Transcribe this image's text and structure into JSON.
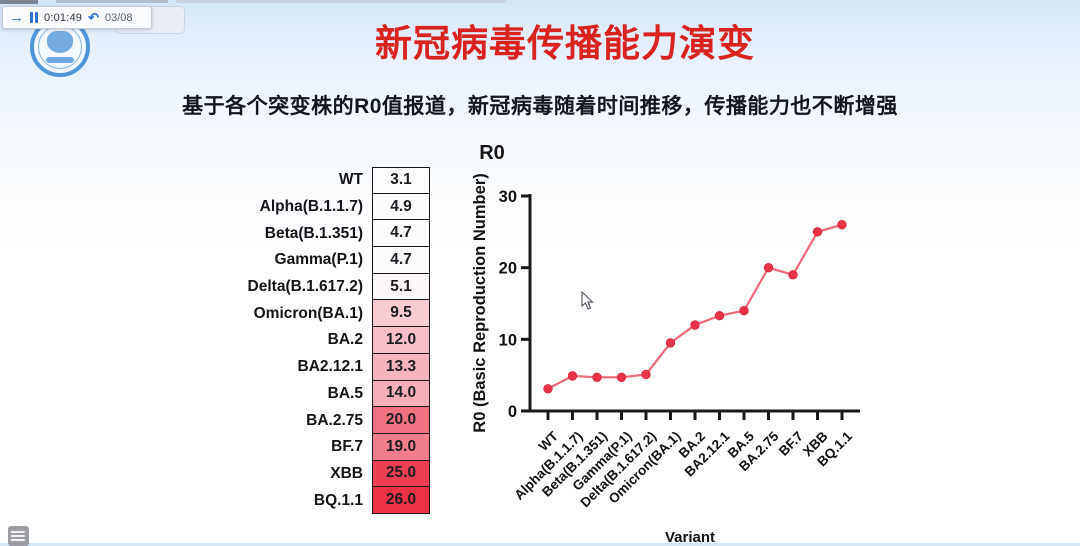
{
  "player": {
    "current_time": "0:01:49",
    "duration": "03/08",
    "play_glyph": "→",
    "undo_glyph": "↶"
  },
  "slide": {
    "title": "新冠病毒传播能力演变",
    "title_color": "#d8231f",
    "subtitle": "基于各个突变株的R0值报道，新冠病毒随着时间推移，传播能力也不断增强",
    "subtitle_color": "#14161f"
  },
  "table": {
    "header": "R0",
    "rows": [
      {
        "label": "WT",
        "value": "3.1",
        "color": "#fdfdfd"
      },
      {
        "label": "Alpha(B.1.1.7)",
        "value": "4.9",
        "color": "#fdfbfb"
      },
      {
        "label": "Beta(B.1.351)",
        "value": "4.7",
        "color": "#fdfbfb"
      },
      {
        "label": "Gamma(P.1)",
        "value": "4.7",
        "color": "#fdfbfb"
      },
      {
        "label": "Delta(B.1.617.2)",
        "value": "5.1",
        "color": "#fdf8f8"
      },
      {
        "label": "Omicron(BA.1)",
        "value": "9.5",
        "color": "#f8ccd3"
      },
      {
        "label": "BA.2",
        "value": "12.0",
        "color": "#f8bfc8"
      },
      {
        "label": "BA2.12.1",
        "value": "13.3",
        "color": "#f6b4be"
      },
      {
        "label": "BA.5",
        "value": "14.0",
        "color": "#f6aeb8"
      },
      {
        "label": "BA.2.75",
        "value": "20.0",
        "color": "#f17180"
      },
      {
        "label": "BF.7",
        "value": "19.0",
        "color": "#f27d8b"
      },
      {
        "label": "XBB",
        "value": "25.0",
        "color": "#ee4053"
      },
      {
        "label": "BQ.1.1",
        "value": "26.0",
        "color": "#ed3246"
      }
    ]
  },
  "chart_data": {
    "type": "line",
    "title": "",
    "categories": [
      "WT",
      "Alpha(B.1.1.7)",
      "Beta(B.1.351)",
      "Gamma(P.1)",
      "Delta(B.1.617.2)",
      "Omicron(BA.1)",
      "BA.2",
      "BA2.12.1",
      "BA.5",
      "BA.2.75",
      "BF.7",
      "XBB",
      "BQ.1.1"
    ],
    "values": [
      3.1,
      4.9,
      4.7,
      4.7,
      5.1,
      9.5,
      12.0,
      13.3,
      14.0,
      20.0,
      19.0,
      25.0,
      26.0
    ],
    "xlabel": "Variant",
    "ylabel": "R0 (Basic Reproduction Number)",
    "ylim": [
      0,
      30
    ],
    "yticks": [
      0,
      10,
      20,
      30
    ],
    "grid": false,
    "legend_position": "none",
    "line_color": "#f0697a",
    "marker_color": "#e73448",
    "axis_color": "#1a1a1a"
  }
}
